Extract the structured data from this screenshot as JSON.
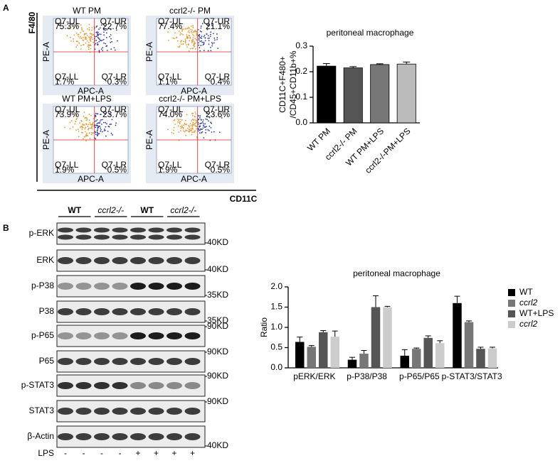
{
  "panels": {
    "a": "A",
    "b": "B"
  },
  "flow": {
    "y_axis_label": "F4/80",
    "x_axis_label": "CD11C",
    "plot_y_label": "PE-A",
    "plot_x_label": "APC-A",
    "plots": [
      {
        "title": "WT  PM",
        "quadrants": [
          {
            "name": "Q7-UL",
            "pct": "75.3%"
          },
          {
            "name": "Q7-UR",
            "pct": "22.7%"
          },
          {
            "name": "Q7-LL",
            "pct": "1.7%"
          },
          {
            "name": "Q7-LR",
            "pct": "0.3%"
          }
        ]
      },
      {
        "title": "ccrl2-/- PM",
        "quadrants": [
          {
            "name": "Q7-UL",
            "pct": "77.4%"
          },
          {
            "name": "Q7-UR",
            "pct": "21.1%"
          },
          {
            "name": "Q7-LL",
            "pct": "1.1%"
          },
          {
            "name": "Q7-LR",
            "pct": "0.4%"
          }
        ]
      },
      {
        "title": "WT PM+LPS",
        "quadrants": [
          {
            "name": "Q7-UL",
            "pct": "73.9%"
          },
          {
            "name": "Q7-UR",
            "pct": "23.7%"
          },
          {
            "name": "Q7-LL",
            "pct": "1.9%"
          },
          {
            "name": "Q7-LR",
            "pct": "0.5%"
          }
        ]
      },
      {
        "title": "ccrl2-/- PM+LPS",
        "quadrants": [
          {
            "name": "Q7-UL",
            "pct": "74.0%"
          },
          {
            "name": "Q7-UR",
            "pct": "23.6%"
          },
          {
            "name": "Q7-LL",
            "pct": "1.9%"
          },
          {
            "name": "Q7-LR",
            "pct": "0.5%"
          }
        ]
      }
    ]
  },
  "blot": {
    "groups": [
      "WT",
      "ccrl2-/-",
      "WT",
      "ccrl2-/-"
    ],
    "rows": [
      {
        "label": "p-ERK",
        "marker": "40KD"
      },
      {
        "label": "ERK",
        "marker": "40KD"
      },
      {
        "label": "p-P38",
        "marker": "35KD"
      },
      {
        "label": "P38",
        "marker": "35KD"
      },
      {
        "label": "p-P65",
        "marker": "90KD"
      },
      {
        "label": "P65",
        "marker": "90KD"
      },
      {
        "label": "p-STAT3",
        "marker": "90KD"
      },
      {
        "label": "STAT3",
        "marker": "90KD"
      },
      {
        "label": "β-Actin",
        "marker": "40KD"
      }
    ],
    "lps_label": "LPS",
    "lps": [
      "-",
      "-",
      "-",
      "-",
      "+",
      "+",
      "+",
      "+"
    ]
  },
  "chart_data": [
    {
      "type": "bar",
      "title": "peritoneal macrophage",
      "y_label": [
        "CD11C+F480+",
        "/CD45+CD11b+%"
      ],
      "categories": [
        "WT PM",
        "ccrl2-/- PM",
        "WT PM+LPS",
        "ccrl2-/-PM+LPS"
      ],
      "values": [
        0.222,
        0.215,
        0.228,
        0.23
      ],
      "errors": [
        0.01,
        0.005,
        0.003,
        0.008
      ],
      "colors": [
        "#000000",
        "#555555",
        "#777777",
        "#bbbbbb"
      ],
      "ylim": [
        0,
        0.3
      ],
      "yticks": [
        {
          "value": 0,
          "label": "0.0"
        },
        0.1,
        0.2,
        0.3
      ]
    },
    {
      "type": "grouped_bar",
      "title": "peritoneal macrophage",
      "y_label": "Ratio",
      "categories": [
        "pERK/ERK",
        "p-P38/P38",
        "p-P65/P65",
        "p-STAT3/STAT3"
      ],
      "series": [
        {
          "name": "WT",
          "color": "#000000",
          "values": [
            0.64,
            0.2,
            0.3,
            1.6
          ],
          "errors": [
            0.12,
            0.06,
            0.15,
            0.17
          ]
        },
        {
          "name": "ccrl2",
          "color": "#777777",
          "values": [
            0.52,
            0.35,
            0.47,
            1.13
          ],
          "errors": [
            0.03,
            0.08,
            0.02,
            0.03
          ]
        },
        {
          "name": "WT+LPS",
          "color": "#555555",
          "values": [
            0.88,
            1.5,
            0.74,
            0.47
          ],
          "errors": [
            0.04,
            0.28,
            0.05,
            0.04
          ]
        },
        {
          "name": "ccrl2",
          "color": "#cccccc",
          "values": [
            0.77,
            1.5,
            0.61,
            0.48
          ],
          "errors": [
            0.14,
            0.02,
            0.06,
            0.03
          ]
        }
      ],
      "ylim": [
        0,
        2
      ],
      "yticks": [
        {
          "value": 0,
          "label": "0.0"
        },
        0.5,
        {
          "value": 1,
          "label": "1.0"
        },
        1.5,
        {
          "value": 2,
          "label": "2.0"
        }
      ],
      "legend": "right"
    }
  ]
}
